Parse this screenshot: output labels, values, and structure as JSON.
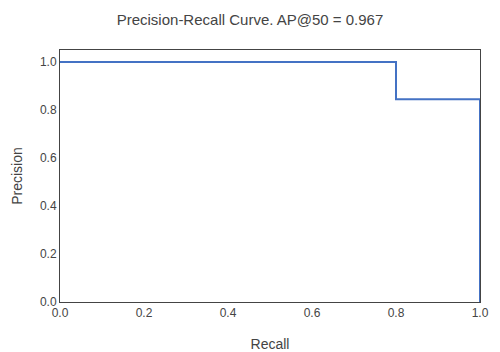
{
  "chart_data": {
    "type": "line",
    "title": "Precision-Recall Curve. AP@50 = 0.967",
    "xlabel": "Recall",
    "ylabel": "Precision",
    "x": [
      0.0,
      0.8,
      0.8,
      1.0,
      1.0
    ],
    "values": [
      1.0,
      1.0,
      0.845,
      0.845,
      0.0
    ],
    "color": "#4472c4",
    "xlim": [
      0.0,
      1.0
    ],
    "ylim": [
      0.0,
      1.05
    ],
    "xticks": [
      {
        "value": 0,
        "label": "0.0"
      },
      0.2,
      0.4,
      0.6,
      0.8,
      {
        "value": 1,
        "label": "1.0"
      }
    ],
    "yticks": [
      {
        "value": 0,
        "label": "0.0"
      },
      0.2,
      0.4,
      0.6,
      0.8,
      {
        "value": 1,
        "label": "1.0"
      }
    ],
    "grid": false
  }
}
